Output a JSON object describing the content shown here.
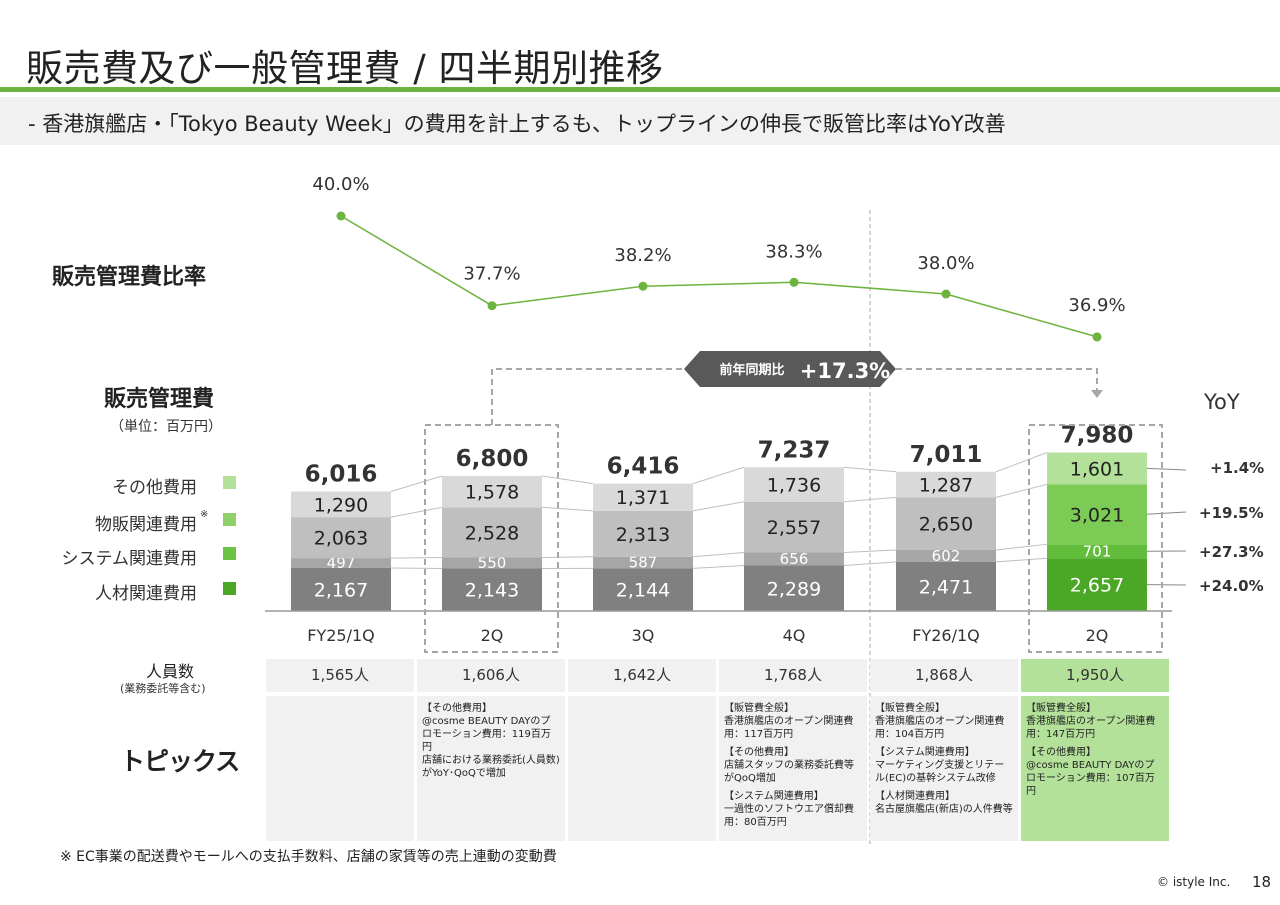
{
  "page": {
    "title": "販売費及び一般管理費 / 四半期別推移",
    "subtitle": "-  香港旗艦店・「Tokyo Beauty Week」の費用を計上するも、トップラインの伸長で販管比率はYoY改善",
    "footnote": "※ EC事業の配送費やモールへの支払手数料、店舗の家賃等の売上連動の変動費",
    "copyright": "© istyle Inc.",
    "page_number": "18"
  },
  "labels": {
    "ratio_row": "販売管理費比率",
    "sga_row": "販売管理費",
    "unit": "（単位：百万円）",
    "headcount_row": "人員数",
    "headcount_note": "(業務委託等含む)",
    "topics_row": "トピックス",
    "yoy_header": "YoY",
    "callout_label": "前年同期比",
    "callout_value": "+17.3%",
    "footnote_mark": "※"
  },
  "colors": {
    "accent": "#6db33f",
    "gray_other": "#d9d9d9",
    "gray_logistics": "#bfbfbf",
    "gray_system": "#a6a6a6",
    "gray_personnel": "#808080",
    "green_other": "#b4e19a",
    "green_logistics": "#7ccb55",
    "green_system": "#63bd3c",
    "green_personnel": "#4aa826"
  },
  "legend": [
    {
      "label": "その他費用",
      "color": "#b4e19a"
    },
    {
      "label": "物販関連費用",
      "color": "#8fd168",
      "note": "※"
    },
    {
      "label": "システム関連費用",
      "color": "#6bc243"
    },
    {
      "label": "人材関連費用",
      "color": "#4aa826"
    }
  ],
  "yoy": [
    "+1.4%",
    "+19.5%",
    "+27.3%",
    "+24.0%"
  ],
  "headcount": [
    "1,565人",
    "1,606人",
    "1,642人",
    "1,768人",
    "1,868人",
    "1,950人"
  ],
  "topics": [
    [],
    [
      "【その他費用】",
      "@cosme BEAUTY DAYのプロモーション費用：119百万円",
      "店舗における業務委託(人員数)がYoY･QoQで増加"
    ],
    [],
    [
      "【販管費全般】",
      "香港旗艦店のオープン関連費用：117百万円",
      "【その他費用】",
      "店舗スタッフの業務委託費等がQoQ増加",
      "【システム関連費用】",
      "一過性のソフトウエア償却費用：80百万円"
    ],
    [
      "【販管費全般】",
      "香港旗艦店のオープン関連費用：104百万円",
      "【システム関連費用】",
      "マーケティング支援とリテール(EC)の基幹システム改修",
      "【人材関連費用】",
      "名古屋旗艦店(新店)の人件費等"
    ],
    [
      "【販管費全般】",
      "香港旗艦店のオープン関連費用：147百万円",
      "【その他費用】",
      "@cosme BEAUTY DAYのプロモーション費用：107百万円"
    ]
  ],
  "chart_data": [
    {
      "type": "line",
      "categories": [
        "FY25/1Q",
        "2Q",
        "3Q",
        "4Q",
        "FY26/1Q",
        "2Q"
      ],
      "values": [
        40.0,
        37.7,
        38.2,
        38.3,
        38.0,
        36.9
      ],
      "labels": [
        "40.0%",
        "37.7%",
        "38.2%",
        "38.3%",
        "38.0%",
        "36.9%"
      ],
      "title": "販売管理費比率",
      "ylim": [
        36,
        41
      ]
    },
    {
      "type": "bar",
      "stacked": true,
      "title": "販売管理費",
      "unit": "（単位：百万円）",
      "categories": [
        "FY25/1Q",
        "2Q",
        "3Q",
        "4Q",
        "FY26/1Q",
        "2Q"
      ],
      "totals": [
        "6,016",
        "6,800",
        "6,416",
        "7,237",
        "7,011",
        "7,980"
      ],
      "total_values": [
        6016,
        6800,
        6416,
        7237,
        7011,
        7980
      ],
      "series": [
        {
          "name": "人材関連費用",
          "values": [
            2167,
            2143,
            2144,
            2289,
            2471,
            2657
          ],
          "labels": [
            "2,167",
            "2,143",
            "2,144",
            "2,289",
            "2,471",
            "2,657"
          ]
        },
        {
          "name": "システム関連費用",
          "values": [
            497,
            550,
            587,
            656,
            602,
            701
          ],
          "labels": [
            "497",
            "550",
            "587",
            "656",
            "602",
            "701"
          ]
        },
        {
          "name": "物販関連費用",
          "values": [
            2063,
            2528,
            2313,
            2557,
            2650,
            3021
          ],
          "labels": [
            "2,063",
            "2,528",
            "2,313",
            "2,557",
            "2,650",
            "3,021"
          ]
        },
        {
          "name": "その他費用",
          "values": [
            1290,
            1578,
            1371,
            1736,
            1287,
            1601
          ],
          "labels": [
            "1,290",
            "1,578",
            "1,371",
            "1,736",
            "1,287",
            "1,601"
          ]
        }
      ],
      "highlight_category_index": 5,
      "comparison": {
        "from_index": 1,
        "to_index": 5,
        "label": "前年同期比",
        "value": "+17.3%"
      }
    }
  ]
}
